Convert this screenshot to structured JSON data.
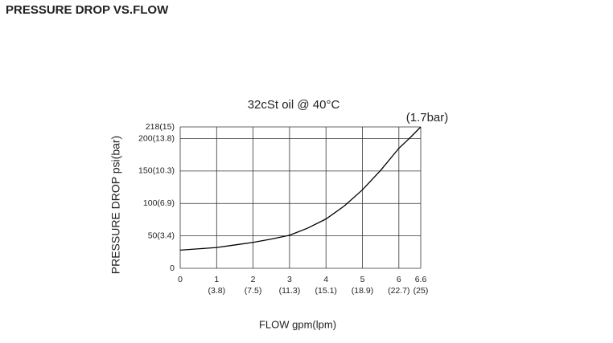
{
  "heading": "PRESSURE DROP VS.FLOW",
  "chart_data": {
    "type": "line",
    "title": "32cSt oil @ 40°C",
    "annotation": "(1.7bar)",
    "xlabel": "FLOW   gpm(lpm)",
    "ylabel": "PRESSURE DROP  psi(bar)",
    "x": [
      0,
      0.5,
      1,
      1.5,
      2,
      2.5,
      3,
      3.5,
      4,
      4.5,
      5,
      5.5,
      6,
      6.3,
      6.6
    ],
    "series": [
      {
        "color": "#000000",
        "values": [
          28,
          30,
          32,
          36,
          40,
          45,
          51,
          62,
          76,
          96,
          121,
          151,
          185,
          201,
          218
        ]
      }
    ],
    "xlim": [
      0,
      6.6
    ],
    "ylim": [
      0,
      218
    ],
    "xticks": [
      0,
      1,
      2,
      3,
      4,
      5,
      6,
      6.6
    ],
    "xticks_secondary": [
      null,
      "(3.8)",
      "(7.5)",
      "(11.3)",
      "(15.1)",
      "(18.9)",
      "(22.7)",
      "(25)"
    ],
    "yticks": [
      0,
      {
        "value": 50,
        "label": "50(3.4)"
      },
      {
        "value": 100,
        "label": "100(6.9)"
      },
      {
        "value": 150,
        "label": "150(10.3)"
      },
      {
        "value": 200,
        "label": "200(13.8)"
      },
      {
        "value": 218,
        "label": "218(15)"
      }
    ],
    "grid": true
  }
}
